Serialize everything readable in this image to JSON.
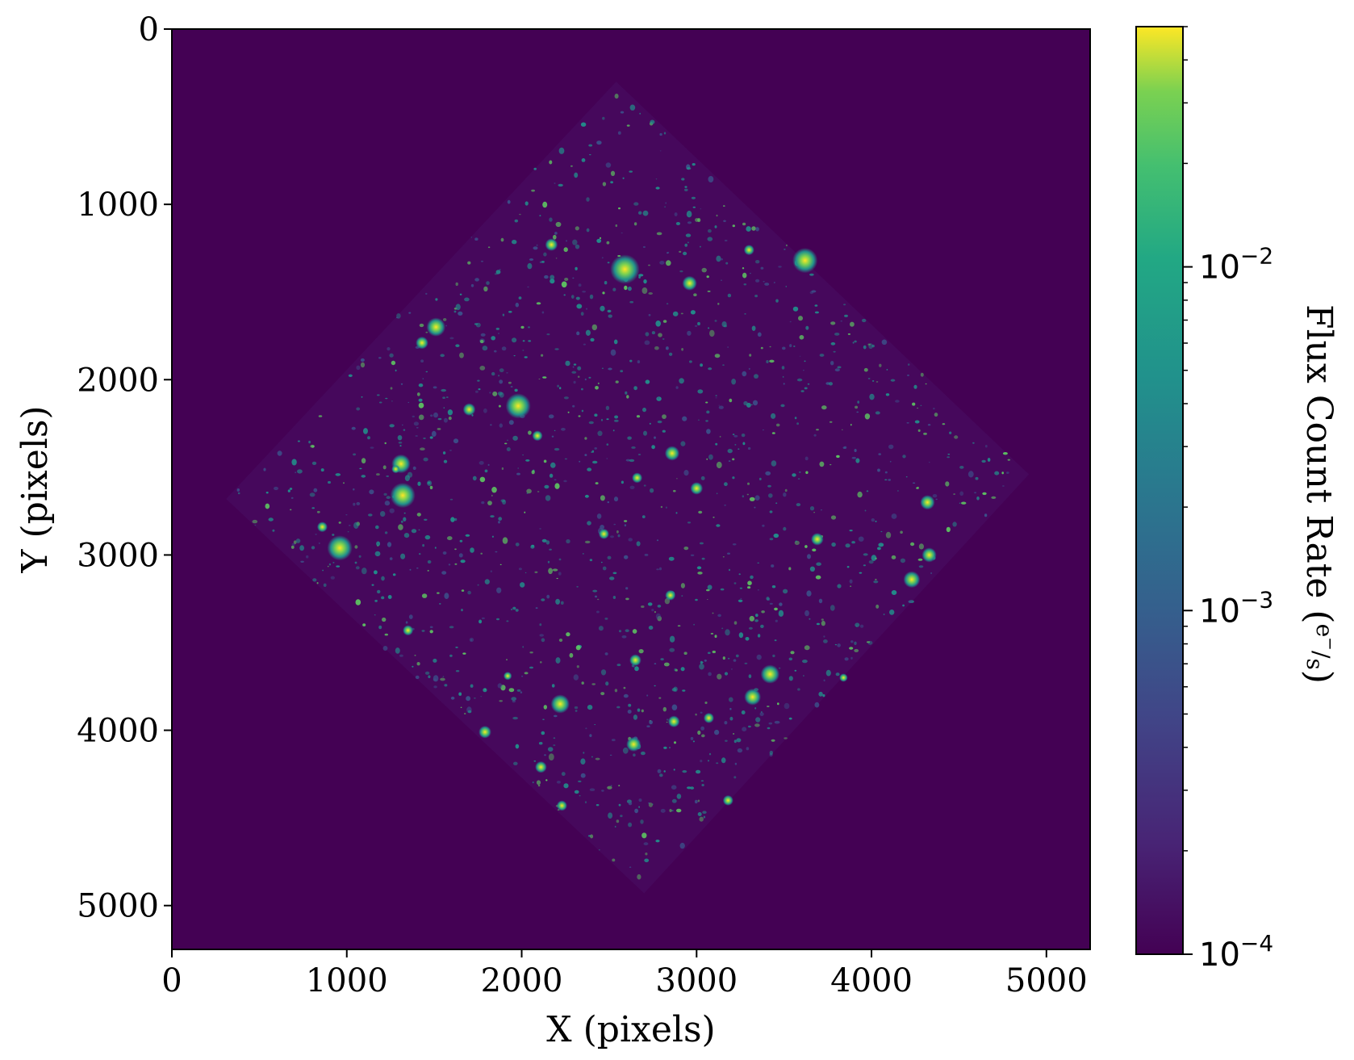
{
  "chart_data": {
    "type": "heatmap",
    "title": "",
    "xlabel": "X (pixels)",
    "ylabel": "Y (pixels)",
    "xlim": [
      0,
      5250
    ],
    "ylim": [
      5250,
      0
    ],
    "xticks": [
      {
        "value": 0,
        "label": "0"
      },
      {
        "value": 1000,
        "label": "1000"
      },
      {
        "value": 2000,
        "label": "2000"
      },
      {
        "value": 3000,
        "label": "3000"
      },
      {
        "value": 4000,
        "label": "4000"
      },
      {
        "value": 5000,
        "label": "5000"
      }
    ],
    "yticks": [
      {
        "value": 0,
        "label": "0"
      },
      {
        "value": 1000,
        "label": "1000"
      },
      {
        "value": 2000,
        "label": "2000"
      },
      {
        "value": 3000,
        "label": "3000"
      },
      {
        "value": 4000,
        "label": "4000"
      },
      {
        "value": 5000,
        "label": "5000"
      }
    ],
    "footprint_corners": [
      [
        2540,
        300
      ],
      [
        4900,
        2540
      ],
      [
        2700,
        4930
      ],
      [
        310,
        2680
      ]
    ],
    "bright_sources": [
      {
        "x": 2590,
        "y": 1370,
        "r": 70
      },
      {
        "x": 3620,
        "y": 1320,
        "r": 60
      },
      {
        "x": 1510,
        "y": 1700,
        "r": 45
      },
      {
        "x": 1430,
        "y": 1790,
        "r": 30
      },
      {
        "x": 1980,
        "y": 2150,
        "r": 60
      },
      {
        "x": 1310,
        "y": 2480,
        "r": 45
      },
      {
        "x": 1320,
        "y": 2660,
        "r": 60
      },
      {
        "x": 960,
        "y": 2960,
        "r": 60
      },
      {
        "x": 860,
        "y": 2840,
        "r": 25
      },
      {
        "x": 2860,
        "y": 2420,
        "r": 35
      },
      {
        "x": 2960,
        "y": 1450,
        "r": 35
      },
      {
        "x": 1700,
        "y": 2170,
        "r": 30
      },
      {
        "x": 2220,
        "y": 3850,
        "r": 45
      },
      {
        "x": 3420,
        "y": 3680,
        "r": 45
      },
      {
        "x": 3320,
        "y": 3810,
        "r": 40
      },
      {
        "x": 4320,
        "y": 2700,
        "r": 35
      },
      {
        "x": 4230,
        "y": 3140,
        "r": 40
      },
      {
        "x": 4330,
        "y": 3000,
        "r": 35
      },
      {
        "x": 3690,
        "y": 2910,
        "r": 30
      },
      {
        "x": 2640,
        "y": 4080,
        "r": 35
      },
      {
        "x": 1790,
        "y": 4010,
        "r": 30
      },
      {
        "x": 2850,
        "y": 3230,
        "r": 25
      },
      {
        "x": 2660,
        "y": 2560,
        "r": 25
      },
      {
        "x": 3000,
        "y": 2620,
        "r": 30
      },
      {
        "x": 2470,
        "y": 2880,
        "r": 25
      },
      {
        "x": 2110,
        "y": 4210,
        "r": 28
      },
      {
        "x": 2870,
        "y": 3950,
        "r": 28
      },
      {
        "x": 2090,
        "y": 2320,
        "r": 25
      },
      {
        "x": 2170,
        "y": 1230,
        "r": 30
      },
      {
        "x": 3300,
        "y": 1260,
        "r": 25
      },
      {
        "x": 2230,
        "y": 4430,
        "r": 25
      },
      {
        "x": 3180,
        "y": 4400,
        "r": 25
      },
      {
        "x": 2650,
        "y": 3600,
        "r": 28
      },
      {
        "x": 3070,
        "y": 3930,
        "r": 25
      },
      {
        "x": 1350,
        "y": 3430,
        "r": 25
      },
      {
        "x": 3840,
        "y": 3700,
        "r": 20
      },
      {
        "x": 1920,
        "y": 3690,
        "r": 20
      },
      {
        "x": 1280,
        "y": 2510,
        "r": 20
      }
    ],
    "colorbar": {
      "label": "Flux Count Rate",
      "unit_numerator": "e",
      "unit_numerator_sup": "−",
      "unit_denominator": "s",
      "scale": "log",
      "range": [
        0.0001,
        0.05
      ],
      "colormap": "viridis",
      "ticks": [
        {
          "value": 0.0001,
          "base": "10",
          "exp": "−4"
        },
        {
          "value": 0.001,
          "base": "10",
          "exp": "−3"
        },
        {
          "value": 0.01,
          "base": "10",
          "exp": "−2"
        }
      ]
    },
    "colors": {
      "background": "#440154",
      "sky": "#46085c",
      "faint": "#3b528b",
      "mid": "#21918c",
      "bright": "#5ec962",
      "peak": "#fde725"
    },
    "grid": false,
    "legend": "none"
  }
}
